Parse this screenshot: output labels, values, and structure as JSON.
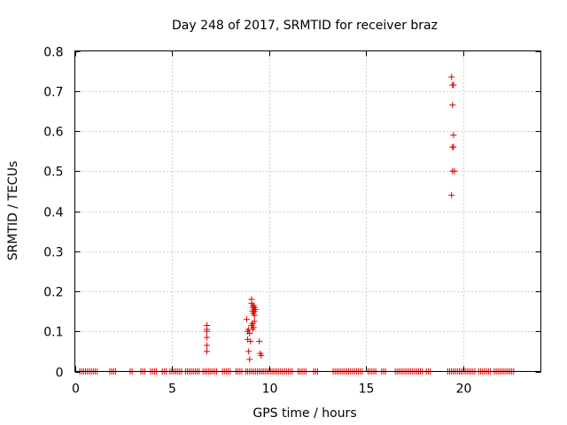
{
  "chart_data": {
    "type": "scatter",
    "title": "Day 248 of 2017, SRMTID for receiver braz",
    "xlabel": "GPS time / hours",
    "ylabel": "SRMTID / TECUs",
    "xlim": [
      0,
      24
    ],
    "ylim": [
      0,
      0.8
    ],
    "x_ticks": [
      "0",
      "5",
      "10",
      "15",
      "20"
    ],
    "x_tick_values": [
      0,
      5,
      10,
      15,
      20
    ],
    "y_ticks": [
      "0",
      "0.1",
      "0.2",
      "0.3",
      "0.4",
      "0.5",
      "0.6",
      "0.7",
      "0.8"
    ],
    "y_tick_values": [
      0,
      0.1,
      0.2,
      0.3,
      0.4,
      0.5,
      0.6,
      0.7,
      0.8
    ],
    "grid": true,
    "marker": "plus",
    "color": "#dd0000",
    "series": [
      {
        "x": [
          6.8,
          6.8,
          6.8,
          6.8,
          6.8,
          6.8,
          8.85,
          8.9,
          8.9,
          8.95,
          8.95,
          9.0,
          9.0,
          9.05,
          9.1,
          9.1,
          9.1,
          9.15,
          9.15,
          9.15,
          9.15,
          9.2,
          9.2,
          9.2,
          9.2,
          9.25,
          9.25,
          9.25,
          9.25,
          9.3,
          9.5,
          9.55,
          9.6,
          19.4,
          19.45,
          19.5,
          19.45,
          19.5,
          19.5,
          19.55,
          19.45,
          19.4,
          19.45
        ],
        "y": [
          0.115,
          0.1,
          0.085,
          0.065,
          0.05,
          0.105,
          0.13,
          0.1,
          0.08,
          0.105,
          0.05,
          0.03,
          0.095,
          0.075,
          0.18,
          0.17,
          0.115,
          0.16,
          0.15,
          0.12,
          0.105,
          0.165,
          0.155,
          0.145,
          0.11,
          0.16,
          0.15,
          0.14,
          0.125,
          0.155,
          0.075,
          0.045,
          0.04,
          0.735,
          0.715,
          0.715,
          0.665,
          0.59,
          0.56,
          0.5,
          0.5,
          0.44,
          0.56
        ]
      }
    ]
  }
}
